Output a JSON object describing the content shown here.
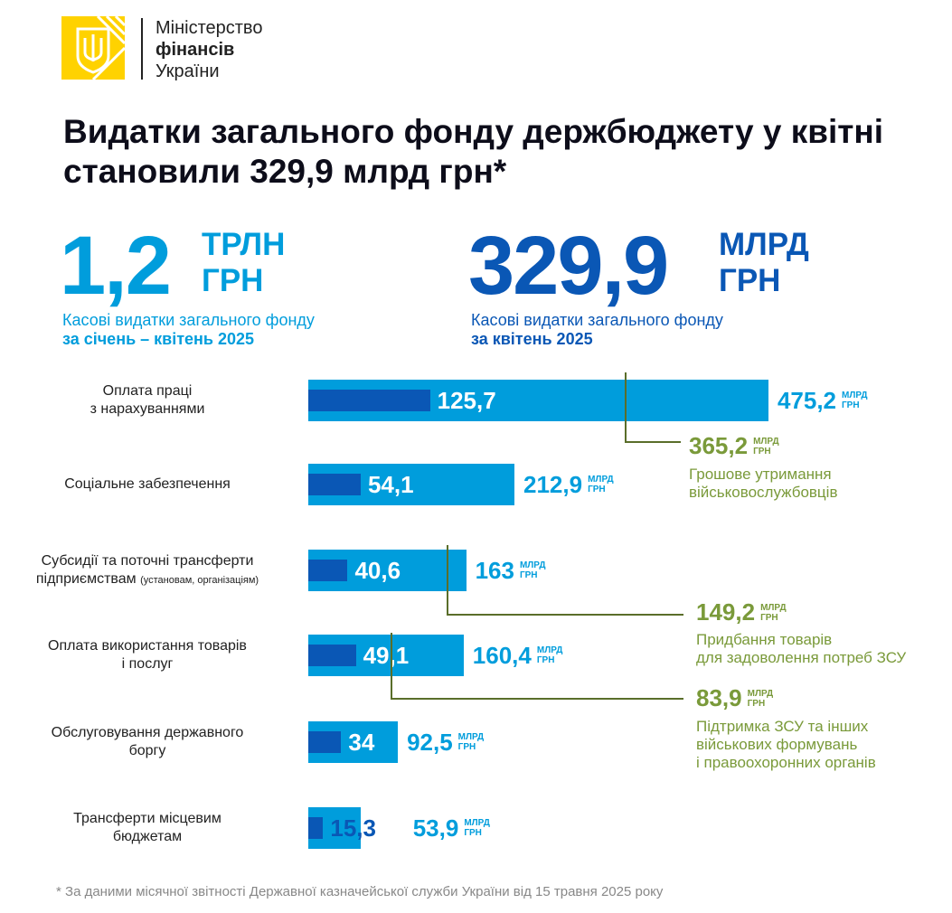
{
  "logo": {
    "line1": "Міністерство",
    "line2": "фінансів",
    "line3": "України"
  },
  "title": "Видатки загального фонду держбюджету у квітні становили 329,9 млрд грн*",
  "kpi1": {
    "value": "1,2",
    "unit1": "ТРЛН",
    "unit2": "ГРН",
    "caption1": "Касові видатки загального фонду",
    "caption2": "за січень – квітень 2025"
  },
  "kpi2": {
    "value": "329,9",
    "unit1": "МЛРД",
    "unit2": "ГРН",
    "caption1": "Касові видатки загального фонду",
    "caption2": "за квітень 2025"
  },
  "unit_small": {
    "a": "МЛРД",
    "b": "ГРН"
  },
  "chart_data": {
    "type": "bar",
    "unit": "млрд грн",
    "series": [
      {
        "name": "Січень–квітень 2025"
      },
      {
        "name": "Квітень 2025"
      }
    ],
    "rows": [
      {
        "label1": "Оплата праці",
        "label2": "з нарахуваннями",
        "label_small": "",
        "april": 125.7,
        "april_label": "125,7",
        "total": 475.2,
        "total_label": "475,2"
      },
      {
        "label1": "Соціальне забезпечення",
        "label2": "",
        "label_small": "",
        "april": 54.1,
        "april_label": "54,1",
        "total": 212.9,
        "total_label": "212,9"
      },
      {
        "label1": "Субсидії та поточні трансферти",
        "label2": "підприємствам",
        "label_small": "(установам, організаціям)",
        "april": 40.6,
        "april_label": "40,6",
        "total": 163,
        "total_label": "163"
      },
      {
        "label1": "Оплата використання товарів",
        "label2": "і послуг",
        "label_small": "",
        "april": 49.1,
        "april_label": "49,1",
        "total": 160.4,
        "total_label": "160,4"
      },
      {
        "label1": "Обслуговування державного",
        "label2": "боргу",
        "label_small": "",
        "april": 34,
        "april_label": "34",
        "total": 92.5,
        "total_label": "92,5"
      },
      {
        "label1": "Трансферти місцевим",
        "label2": "бюджетам",
        "label_small": "",
        "april": 15.3,
        "april_label": "15,3",
        "total": 53.9,
        "total_label": "53,9"
      }
    ],
    "annotations": [
      {
        "value": "365,2",
        "desc1": "Грошове утримання",
        "desc2": "військовослужбовців"
      },
      {
        "value": "149,2",
        "desc1": "Придбання товарів",
        "desc2": "для задоволення потреб ЗСУ"
      },
      {
        "value": "83,9",
        "desc1": "Підтримка ЗСУ та інших",
        "desc2": "військових формувань",
        "desc3": "і правоохоронних органів"
      }
    ]
  },
  "footnote": "* За даними місячної звітності Державної казначейської служби України від 15 травня 2025 року",
  "colors": {
    "light": "#009DDC",
    "dark": "#0A57B5",
    "green": "#7A9A3A"
  }
}
